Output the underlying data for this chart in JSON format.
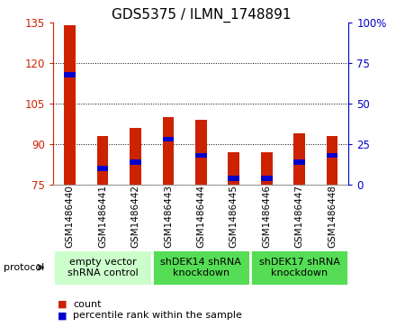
{
  "title": "GDS5375 / ILMN_1748891",
  "samples": [
    "GSM1486440",
    "GSM1486441",
    "GSM1486442",
    "GSM1486443",
    "GSM1486444",
    "GSM1486445",
    "GSM1486446",
    "GSM1486447",
    "GSM1486448"
  ],
  "count_values": [
    134,
    93,
    96,
    100,
    99,
    87,
    87,
    94,
    93
  ],
  "percentile_values": [
    68,
    10,
    14,
    28,
    18,
    4,
    4,
    14,
    18
  ],
  "ylim_left": [
    75,
    135
  ],
  "ylim_right": [
    0,
    100
  ],
  "yticks_left": [
    75,
    90,
    105,
    120,
    135
  ],
  "yticks_right": [
    0,
    25,
    50,
    75,
    100
  ],
  "ytick_labels_right": [
    "0",
    "25",
    "50",
    "75",
    "100%"
  ],
  "bar_width": 0.35,
  "count_color": "#cc2200",
  "percentile_color": "#0000cc",
  "protocol_groups": [
    {
      "label": "empty vector\nshRNA control",
      "start": 0,
      "end": 3,
      "color": "#ccffcc"
    },
    {
      "label": "shDEK14 shRNA\nknockdown",
      "start": 3,
      "end": 6,
      "color": "#55dd55"
    },
    {
      "label": "shDEK17 shRNA\nknockdown",
      "start": 6,
      "end": 9,
      "color": "#55dd55"
    }
  ],
  "legend_count_label": "count",
  "legend_percentile_label": "percentile rank within the sample",
  "protocol_label": "protocol",
  "plot_bg_color": "#ffffff",
  "xtick_bg_color": "#d0d0d0",
  "xtick_border_color": "#ffffff",
  "title_fontsize": 11,
  "tick_fontsize": 8.5,
  "proto_fontsize": 8,
  "legend_fontsize": 8,
  "sample_fontsize": 7.5
}
